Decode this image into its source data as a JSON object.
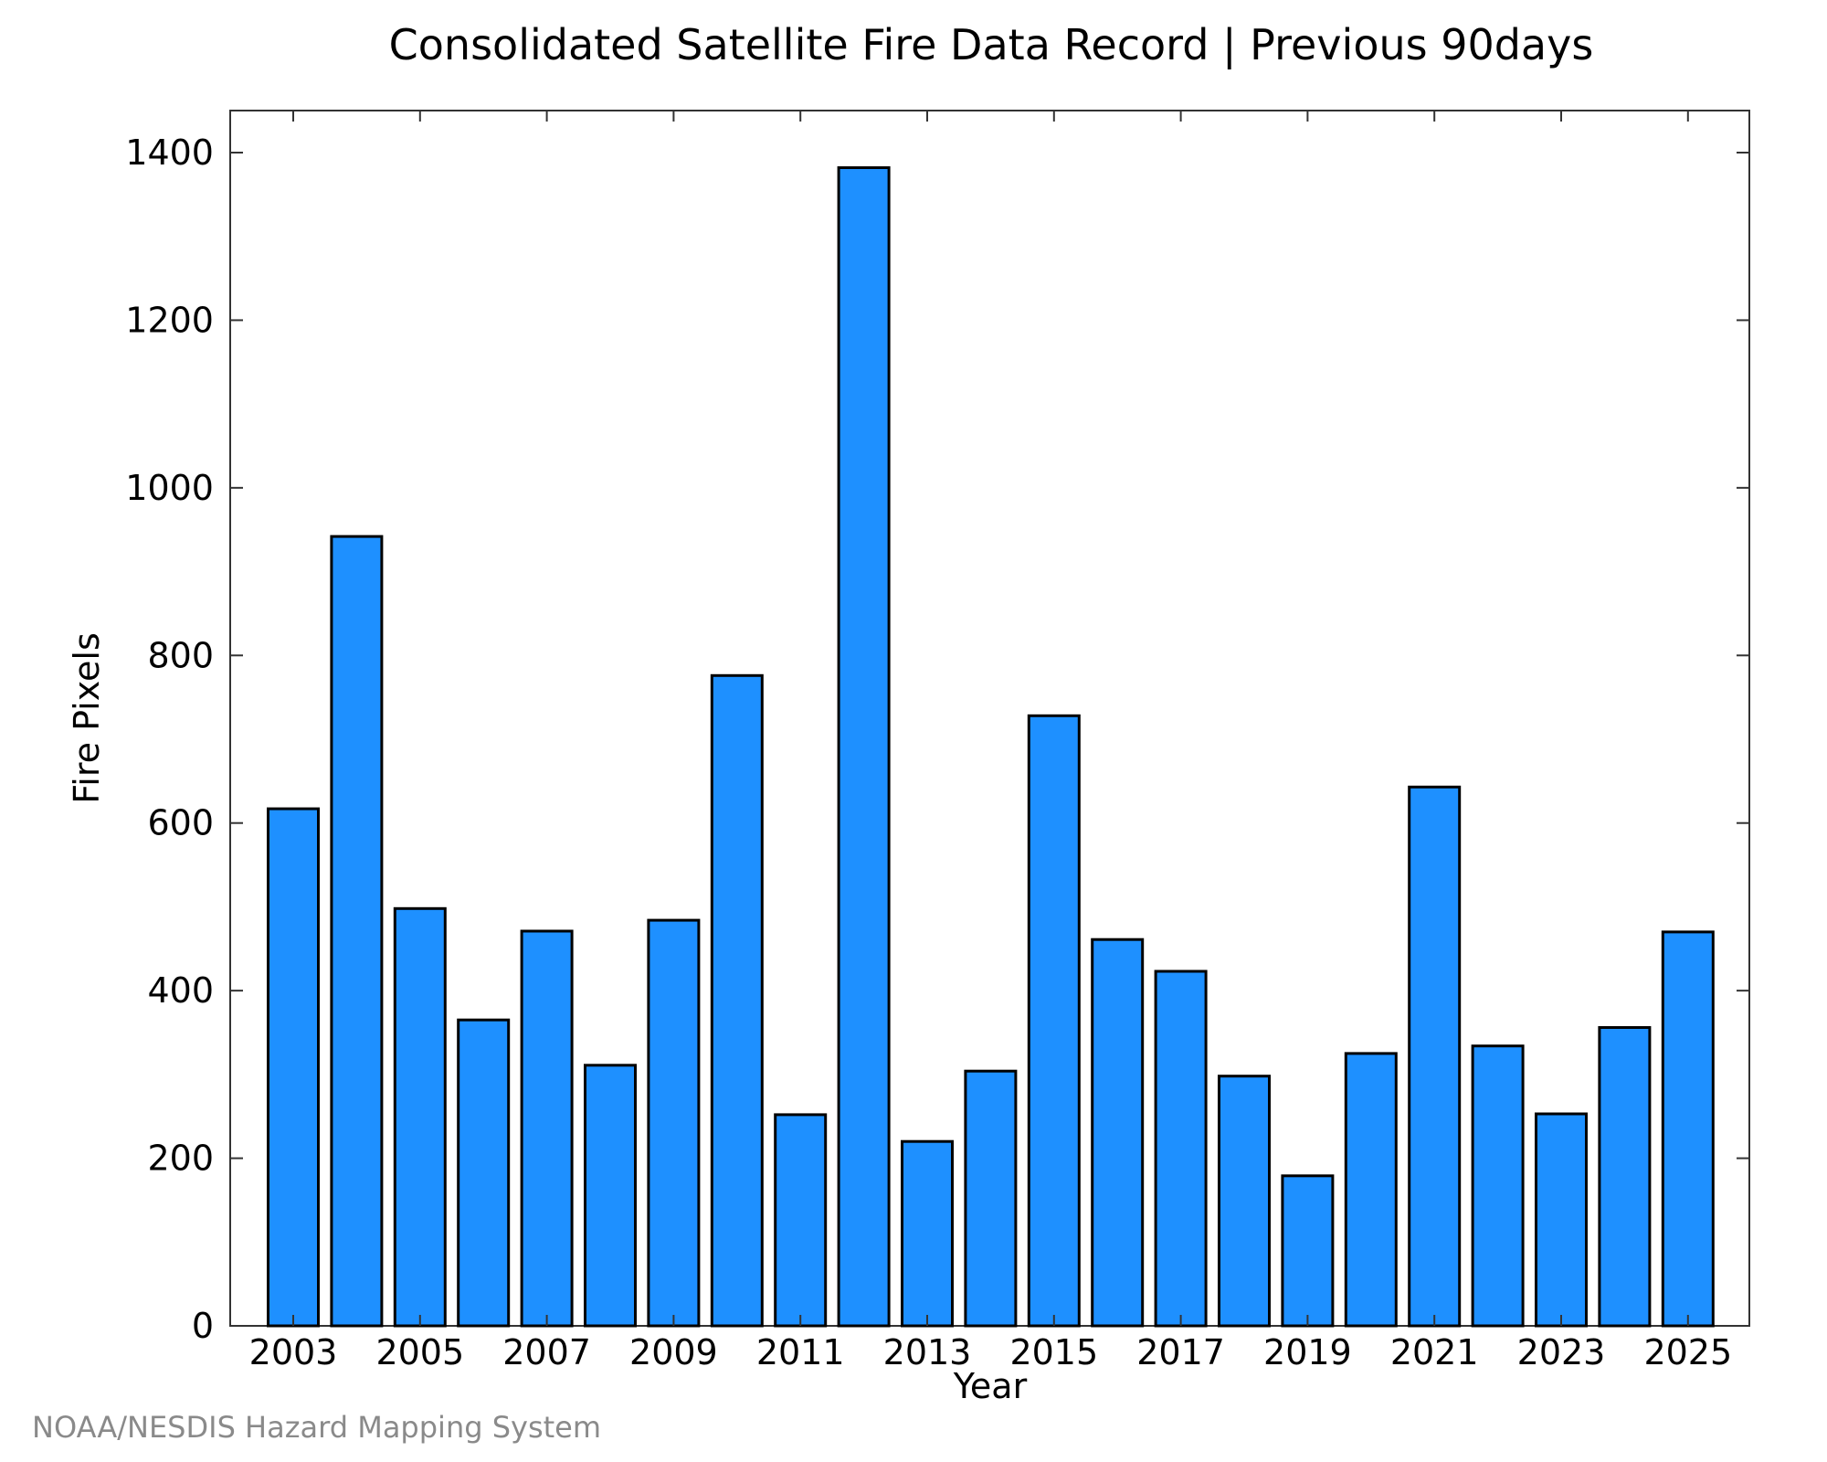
{
  "chart_data": {
    "type": "bar",
    "title": "Consolidated Satellite Fire Data Record | Previous 90days",
    "xlabel": "Year",
    "ylabel": "Fire Pixels",
    "categories": [
      "2003",
      "2004",
      "2005",
      "2006",
      "2007",
      "2008",
      "2009",
      "2010",
      "2011",
      "2012",
      "2013",
      "2014",
      "2015",
      "2016",
      "2017",
      "2018",
      "2019",
      "2020",
      "2021",
      "2022",
      "2023",
      "2024",
      "2025"
    ],
    "values": [
      617,
      942,
      498,
      365,
      471,
      311,
      484,
      776,
      252,
      1382,
      220,
      304,
      728,
      461,
      423,
      298,
      179,
      325,
      643,
      334,
      253,
      356,
      470
    ],
    "x_tick_labels": [
      "2003",
      "2005",
      "2007",
      "2009",
      "2011",
      "2013",
      "2015",
      "2017",
      "2019",
      "2021",
      "2023",
      "2025"
    ],
    "y_ticks": [
      0,
      200,
      400,
      600,
      800,
      1000,
      1200,
      1400
    ],
    "ylim": [
      0,
      1400
    ],
    "grid": false,
    "legend": "none",
    "bar_color": "#1e90ff"
  },
  "credit": "NOAA/NESDIS Hazard Mapping System"
}
